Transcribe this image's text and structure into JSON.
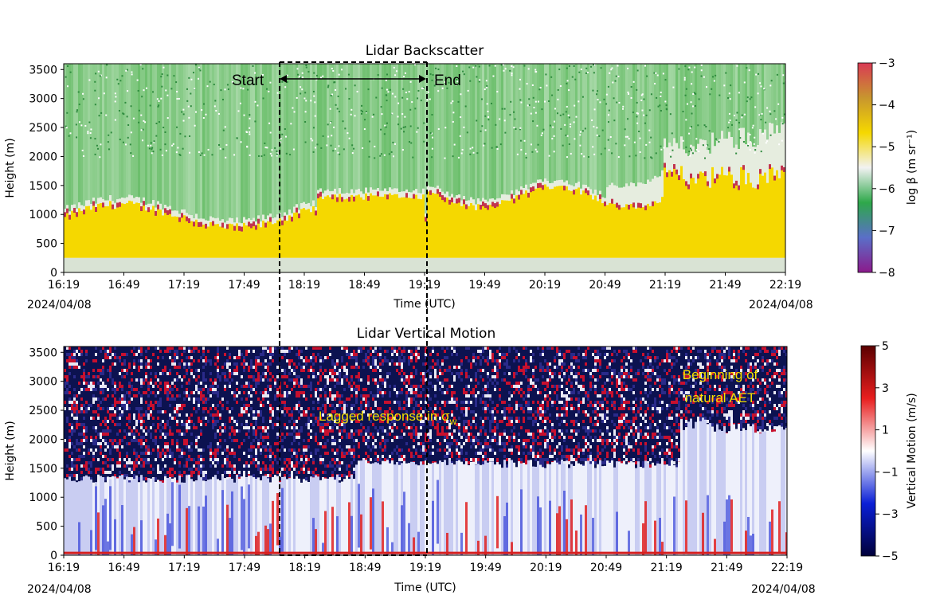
{
  "chart_data": [
    {
      "type": "heatmap",
      "title": "Lidar Backscatter",
      "xlabel": "Time (UTC)",
      "ylabel": "Height (m)",
      "x_ticks": [
        "16:19",
        "16:49",
        "17:19",
        "17:49",
        "18:19",
        "18:49",
        "19:19",
        "19:49",
        "20:19",
        "20:49",
        "21:19",
        "21:49",
        "22:19"
      ],
      "x_date_left": "2024/04/08",
      "x_date_right": "2024/04/08",
      "y_ticks": [
        0,
        500,
        1000,
        1500,
        2000,
        2500,
        3000,
        3500
      ],
      "ylim": [
        0,
        3600
      ],
      "colorbar": {
        "label": "log β (m sr⁻¹)",
        "range": [
          -8,
          -3
        ],
        "ticks": [
          "−3",
          "−4",
          "−5",
          "−6",
          "−7",
          "−8"
        ],
        "colors": [
          "#8b1a8b",
          "#5a6fc8",
          "#2ea84a",
          "#f2f2f2",
          "#f5d800",
          "#c8962e",
          "#d93a55"
        ]
      },
      "layers": [
        {
          "name": "aerosol-layer",
          "color": "#f5d800",
          "top_m": [
            900,
            1400
          ]
        },
        {
          "name": "noise",
          "color": "#2ea84a"
        }
      ],
      "annotations": [
        {
          "text": "Start",
          "time": "18:04"
        },
        {
          "text": "End",
          "time": "19:19"
        }
      ]
    },
    {
      "type": "heatmap",
      "title": "Lidar Vertical Motion",
      "xlabel": "Time (UTC)",
      "ylabel": "Height (m)",
      "x_ticks": [
        "16:19",
        "16:49",
        "17:19",
        "17:49",
        "18:19",
        "18:49",
        "19:19",
        "19:49",
        "20:19",
        "20:49",
        "21:19",
        "21:49",
        "22:19"
      ],
      "x_date_left": "2024/04/08",
      "x_date_right": "2024/04/08",
      "y_ticks": [
        0,
        500,
        1000,
        1500,
        2000,
        2500,
        3000,
        3500
      ],
      "ylim": [
        0,
        3600
      ],
      "colorbar": {
        "label": "Vertical Motion (m/s)",
        "range": [
          -5,
          5
        ],
        "ticks": [
          "5",
          "3",
          "1",
          "−1",
          "−3",
          "−5"
        ],
        "colors": [
          "#00003a",
          "#0a1fd6",
          "#ffffff",
          "#e81e1e",
          "#5a0000"
        ]
      },
      "annotations": [
        {
          "text_main": "Lagged response in σ",
          "text_sub": "w",
          "color": "#f5e000"
        },
        {
          "lines": [
            "Beginning of",
            "natural AET"
          ],
          "color": "#f5e000"
        }
      ]
    }
  ]
}
